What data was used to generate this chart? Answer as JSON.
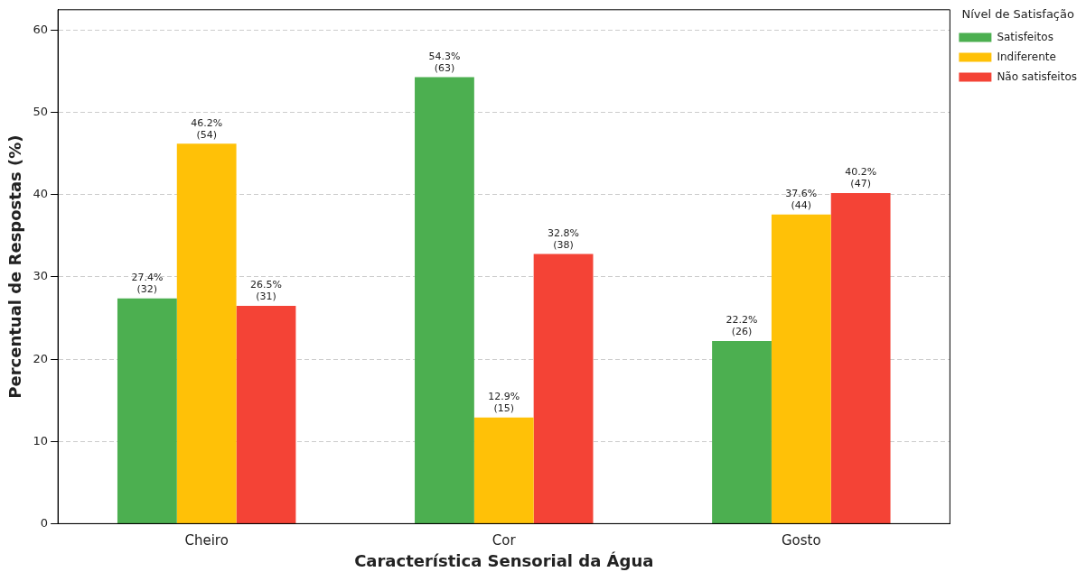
{
  "chart_data": {
    "type": "bar",
    "xlabel": "Característica Sensorial da Água",
    "ylabel": "Percentual de Respostas (%)",
    "legend_title": "Nível de Satisfação",
    "categories": [
      "Cheiro",
      "Cor",
      "Gosto"
    ],
    "series": [
      {
        "name": "Satisfeitos",
        "color": "#4caf50",
        "values": [
          27.4,
          54.3,
          22.2
        ],
        "value_labels": [
          "27.4%\n(32)",
          "54.3%\n(63)",
          "22.2%\n(26)"
        ]
      },
      {
        "name": "Indiferente",
        "color": "#ffc107",
        "values": [
          46.2,
          12.9,
          37.6
        ],
        "value_labels": [
          "46.2%\n(54)",
          "12.9%\n(15)",
          "37.6%\n(44)"
        ]
      },
      {
        "name": "Não satisfeitos",
        "color": "#f44336",
        "values": [
          26.5,
          32.8,
          40.2
        ],
        "value_labels": [
          "26.5%\n(31)",
          "32.8%\n(38)",
          "40.2%\n(47)"
        ]
      }
    ],
    "ylim": [
      0,
      62.5
    ],
    "yticks": [
      0,
      10,
      20,
      30,
      40,
      50,
      60
    ],
    "grid": "y",
    "legend": "top right"
  }
}
